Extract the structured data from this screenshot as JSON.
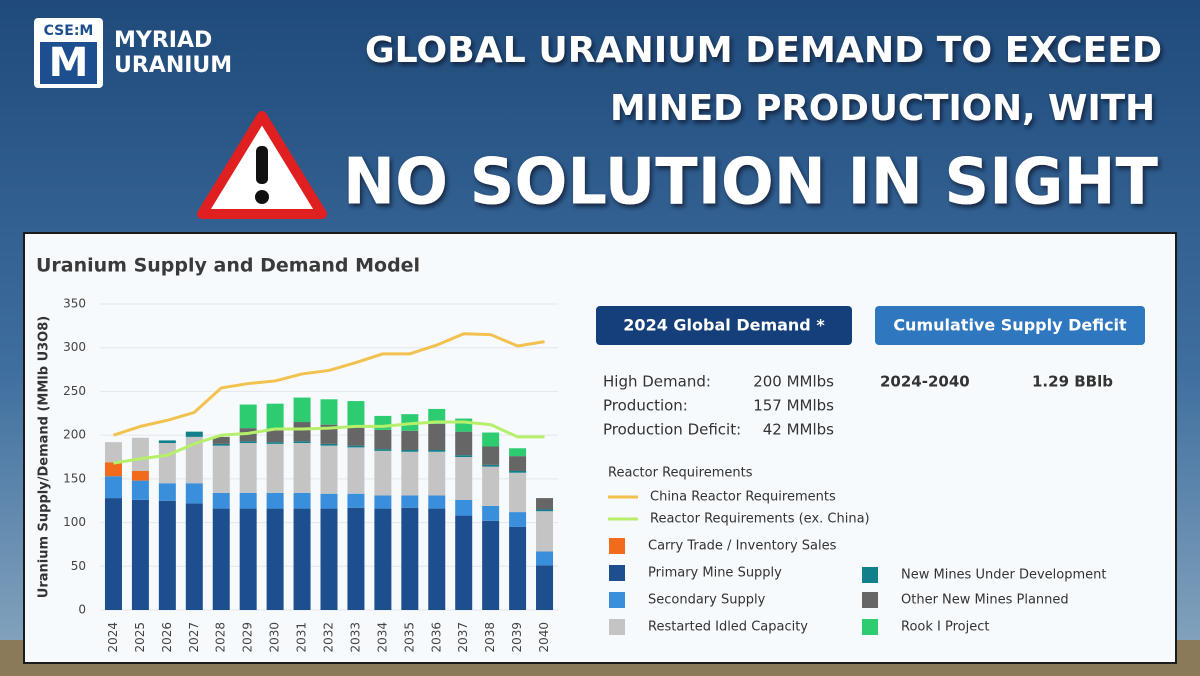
{
  "header": {
    "logo_ticker": "CSE:M",
    "logo_letter": "M",
    "company_line1": "MYRIAD",
    "company_line2": "URANIUM",
    "headline_line1": "GLOBAL URANIUM DEMAND TO EXCEED",
    "headline_line2": "MINED PRODUCTION, WITH",
    "headline_line3": "NO SOLUTION IN SIGHT"
  },
  "chart_data": {
    "type": "bar",
    "stacked": true,
    "title": "Uranium Supply and Demand Model",
    "y_label": "Uranium Supply/Demand (MMlb U3O8)",
    "categories": [
      "2024",
      "2025",
      "2026",
      "2027",
      "2028",
      "2029",
      "2030",
      "2031",
      "2032",
      "2033",
      "2034",
      "2035",
      "2036",
      "2037",
      "2038",
      "2039",
      "2040"
    ],
    "ylim": [
      0,
      350
    ],
    "yticks": [
      0,
      50,
      100,
      150,
      200,
      250,
      300,
      350
    ],
    "grid": true,
    "legend_heading": "Reactor Requirements",
    "series": [
      {
        "name": "Primary Mine Supply",
        "color": "#1d4f8f",
        "values": [
          128,
          126,
          125,
          122,
          116,
          116,
          116,
          116,
          116,
          117,
          116,
          117,
          116,
          108,
          102,
          95,
          51
        ]
      },
      {
        "name": "Secondary Supply",
        "color": "#3a8fdc",
        "values": [
          25,
          22,
          20,
          23,
          18,
          18,
          18,
          18,
          17,
          16,
          15,
          14,
          15,
          18,
          17,
          17,
          16
        ]
      },
      {
        "name": "Carry Trade / Inventory Sales",
        "color": "#f26b1d",
        "values": [
          16,
          11,
          0,
          0,
          0,
          0,
          0,
          0,
          0,
          0,
          0,
          0,
          0,
          0,
          0,
          0,
          0
        ]
      },
      {
        "name": "Restarted Idled Capacity",
        "color": "#c4c4c4",
        "values": [
          23,
          38,
          46,
          53,
          54,
          57,
          56,
          57,
          55,
          53,
          51,
          50,
          50,
          49,
          45,
          45,
          46
        ]
      },
      {
        "name": "New Mines Under Development",
        "color": "#12808a",
        "values": [
          0,
          0,
          3,
          6,
          2,
          2,
          2,
          2,
          2,
          2,
          2,
          2,
          2,
          2,
          2,
          2,
          2
        ]
      },
      {
        "name": "Other New Mines Planned",
        "color": "#666666",
        "values": [
          0,
          0,
          0,
          0,
          8,
          15,
          14,
          22,
          22,
          21,
          22,
          22,
          30,
          27,
          21,
          17,
          13
        ]
      },
      {
        "name": "Rook I Project",
        "color": "#2ecc71",
        "values": [
          0,
          0,
          0,
          0,
          0,
          27,
          30,
          28,
          29,
          30,
          16,
          19,
          17,
          15,
          16,
          9,
          0
        ]
      },
      {
        "name": "China Reactor Requirements",
        "type": "line",
        "color": "#f2c14e",
        "values": [
          200,
          210,
          217,
          226,
          254,
          259,
          262,
          270,
          274,
          283,
          293,
          293,
          303,
          316,
          315,
          302,
          307
        ]
      },
      {
        "name": "Reactor Requirements (ex. China)",
        "type": "line",
        "color": "#b6f06a",
        "values": [
          168,
          173,
          177,
          190,
          200,
          202,
          207,
          207,
          208,
          210,
          210,
          213,
          215,
          215,
          212,
          198,
          198
        ]
      }
    ]
  },
  "stats": {
    "demand_title": "2024 Global Demand *",
    "demand_rows": [
      {
        "label": "High Demand:",
        "value": "200 MMlbs"
      },
      {
        "label": "Production:",
        "value": "157 MMlbs"
      },
      {
        "label": "Production Deficit:",
        "value": "42 MMlbs"
      }
    ],
    "deficit_title": "Cumulative Supply Deficit",
    "deficit_period": "2024-2040",
    "deficit_value": "1.29 BBlb"
  }
}
